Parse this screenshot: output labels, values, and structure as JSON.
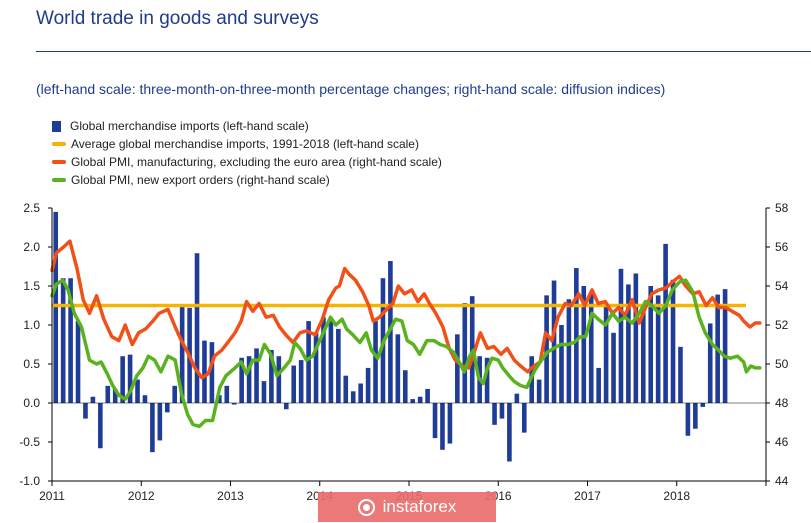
{
  "header": {
    "title": "World trade in goods and surveys",
    "subtitle": "(left-hand scale: three-month-on-three-month percentage changes; right-hand scale: diffusion indices)"
  },
  "watermark": {
    "text": "instaforex",
    "color": "#e96e6c"
  },
  "chart_data": {
    "type": "bar",
    "colors": {
      "imports": "#1f3c96",
      "average": "#f5b400",
      "pmi_manufacturing": "#f25019",
      "pmi_export": "#5ab21e",
      "axis": "#000000"
    },
    "x_tick_labels": [
      "2011",
      "2012",
      "2013",
      "2014",
      "2015",
      "2016",
      "2017",
      "2018"
    ],
    "x_range_years": [
      2011,
      2019
    ],
    "left_axis": {
      "ylim": [
        -1.0,
        2.5
      ],
      "ticks": [
        "2.5",
        "2.0",
        "1.5",
        "1.0",
        "0.5",
        "0.0",
        "-0.5",
        "-1.0"
      ]
    },
    "right_axis": {
      "ylim": [
        44,
        58
      ],
      "ticks": [
        "58",
        "56",
        "54",
        "52",
        "50",
        "48",
        "46",
        "44"
      ]
    },
    "series": [
      {
        "name": "Global merchandise imports (left-hand scale)",
        "kind": "bar",
        "axis": "left",
        "start": "2011-01",
        "values": [
          2.45,
          1.6,
          1.6,
          1.05,
          -0.2,
          0.08,
          -0.58,
          0.22,
          0.18,
          0.6,
          0.62,
          0.3,
          0.1,
          -0.63,
          -0.48,
          -0.12,
          0.22,
          1.25,
          1.22,
          1.92,
          0.8,
          0.78,
          0.1,
          0.22,
          -0.02,
          0.58,
          0.6,
          0.7,
          0.28,
          0.68,
          0.6,
          -0.08,
          0.48,
          0.55,
          1.05,
          0.9,
          1.1,
          1.05,
          0.95,
          0.35,
          0.15,
          0.25,
          0.45,
          1.05,
          1.6,
          1.82,
          0.88,
          0.42,
          0.05,
          0.08,
          0.18,
          -0.45,
          -0.6,
          -0.52,
          0.88,
          1.28,
          1.37,
          0.6,
          0.58,
          -0.28,
          -0.2,
          -0.75,
          0.12,
          -0.38,
          0.6,
          0.3,
          1.38,
          1.57,
          1.0,
          1.33,
          1.73,
          1.5,
          1.4,
          0.45,
          1.27,
          0.9,
          1.72,
          1.52,
          1.66,
          1.2,
          1.5,
          1.38,
          2.04,
          1.58,
          0.72,
          -0.42,
          -0.33,
          -0.05,
          1.02,
          1.39,
          1.46
        ],
        "color": "#1f3c96"
      },
      {
        "name": "Average global merchandise imports, 1991-2018 (left-hand scale)",
        "kind": "line",
        "axis": "left",
        "value": 1.25,
        "color": "#f5b400"
      },
      {
        "name": "Global PMI, manufacturing, excluding the euro area (right-hand scale)",
        "kind": "line",
        "axis": "right",
        "points": [
          [
            2011.0,
            54.8
          ],
          [
            2011.05,
            55.7
          ],
          [
            2011.13,
            56.0
          ],
          [
            2011.2,
            56.3
          ],
          [
            2011.28,
            54.9
          ],
          [
            2011.35,
            53.3
          ],
          [
            2011.42,
            52.6
          ],
          [
            2011.5,
            53.5
          ],
          [
            2011.58,
            52.3
          ],
          [
            2011.67,
            51.4
          ],
          [
            2011.75,
            51.2
          ],
          [
            2011.82,
            52.0
          ],
          [
            2011.9,
            51.0
          ],
          [
            2011.97,
            51.6
          ],
          [
            2012.05,
            51.8
          ],
          [
            2012.13,
            52.2
          ],
          [
            2012.2,
            52.6
          ],
          [
            2012.3,
            52.8
          ],
          [
            2012.38,
            51.9
          ],
          [
            2012.45,
            51.2
          ],
          [
            2012.52,
            50.6
          ],
          [
            2012.6,
            49.8
          ],
          [
            2012.68,
            49.3
          ],
          [
            2012.75,
            49.5
          ],
          [
            2012.82,
            50.4
          ],
          [
            2012.9,
            50.7
          ],
          [
            2012.97,
            51.1
          ],
          [
            2013.05,
            51.6
          ],
          [
            2013.12,
            52.2
          ],
          [
            2013.18,
            53.2
          ],
          [
            2013.25,
            52.7
          ],
          [
            2013.32,
            53.1
          ],
          [
            2013.4,
            52.4
          ],
          [
            2013.48,
            52.5
          ],
          [
            2013.55,
            51.9
          ],
          [
            2013.62,
            51.5
          ],
          [
            2013.7,
            51.1
          ],
          [
            2013.78,
            51.6
          ],
          [
            2013.85,
            51.7
          ],
          [
            2013.95,
            51.5
          ],
          [
            2014.03,
            52.3
          ],
          [
            2014.1,
            53.3
          ],
          [
            2014.18,
            53.9
          ],
          [
            2014.22,
            54.0
          ],
          [
            2014.28,
            54.9
          ],
          [
            2014.33,
            54.6
          ],
          [
            2014.4,
            54.3
          ],
          [
            2014.48,
            53.7
          ],
          [
            2014.55,
            53.0
          ],
          [
            2014.6,
            52.2
          ],
          [
            2014.67,
            52.4
          ],
          [
            2014.75,
            52.8
          ],
          [
            2014.82,
            53.1
          ],
          [
            2014.88,
            54.0
          ],
          [
            2014.95,
            53.6
          ],
          [
            2015.03,
            53.8
          ],
          [
            2015.1,
            53.2
          ],
          [
            2015.17,
            53.6
          ],
          [
            2015.23,
            53.1
          ],
          [
            2015.3,
            52.6
          ],
          [
            2015.38,
            51.9
          ],
          [
            2015.45,
            50.8
          ],
          [
            2015.52,
            50.2
          ],
          [
            2015.6,
            49.9
          ],
          [
            2015.67,
            49.8
          ],
          [
            2015.73,
            50.6
          ],
          [
            2015.8,
            51.6
          ],
          [
            2015.88,
            50.8
          ],
          [
            2015.95,
            50.9
          ],
          [
            2016.03,
            50.5
          ],
          [
            2016.1,
            50.8
          ],
          [
            2016.18,
            50.2
          ],
          [
            2016.25,
            49.9
          ],
          [
            2016.33,
            49.6
          ],
          [
            2016.4,
            49.9
          ],
          [
            2016.47,
            50.1
          ],
          [
            2016.53,
            51.6
          ],
          [
            2016.6,
            51.2
          ],
          [
            2016.67,
            52.4
          ],
          [
            2016.75,
            53.1
          ],
          [
            2016.82,
            53.0
          ],
          [
            2016.9,
            53.6
          ],
          [
            2016.97,
            53.0
          ],
          [
            2017.05,
            53.8
          ],
          [
            2017.12,
            53.1
          ],
          [
            2017.2,
            53.2
          ],
          [
            2017.28,
            52.6
          ],
          [
            2017.35,
            52.9
          ],
          [
            2017.42,
            52.5
          ],
          [
            2017.5,
            53.3
          ],
          [
            2017.58,
            52.1
          ],
          [
            2017.65,
            52.9
          ],
          [
            2017.72,
            53.6
          ],
          [
            2017.8,
            53.8
          ],
          [
            2017.88,
            53.9
          ],
          [
            2017.95,
            54.2
          ],
          [
            2018.03,
            54.5
          ],
          [
            2018.1,
            54.0
          ],
          [
            2018.18,
            53.6
          ],
          [
            2018.25,
            53.7
          ],
          [
            2018.33,
            53.0
          ],
          [
            2018.4,
            53.4
          ],
          [
            2018.47,
            52.9
          ],
          [
            2018.55,
            52.9
          ],
          [
            2018.62,
            52.7
          ],
          [
            2018.7,
            52.5
          ],
          [
            2018.75,
            52.2
          ],
          [
            2018.82,
            51.9
          ],
          [
            2018.88,
            52.1
          ],
          [
            2018.93,
            52.1
          ]
        ],
        "color": "#f25019"
      },
      {
        "name": "Global PMI, new export orders (right-hand scale)",
        "kind": "line",
        "axis": "right",
        "points": [
          [
            2011.0,
            53.5
          ],
          [
            2011.05,
            54.1
          ],
          [
            2011.12,
            54.3
          ],
          [
            2011.18,
            53.8
          ],
          [
            2011.25,
            52.6
          ],
          [
            2011.33,
            51.9
          ],
          [
            2011.42,
            50.2
          ],
          [
            2011.5,
            50.0
          ],
          [
            2011.55,
            50.1
          ],
          [
            2011.62,
            49.5
          ],
          [
            2011.68,
            48.9
          ],
          [
            2011.75,
            48.4
          ],
          [
            2011.82,
            48.2
          ],
          [
            2011.88,
            48.6
          ],
          [
            2011.95,
            49.4
          ],
          [
            2012.02,
            49.8
          ],
          [
            2012.08,
            50.4
          ],
          [
            2012.15,
            50.2
          ],
          [
            2012.22,
            49.6
          ],
          [
            2012.3,
            50.4
          ],
          [
            2012.38,
            50.2
          ],
          [
            2012.45,
            48.5
          ],
          [
            2012.52,
            47.4
          ],
          [
            2012.58,
            46.9
          ],
          [
            2012.65,
            46.8
          ],
          [
            2012.72,
            47.1
          ],
          [
            2012.8,
            47.1
          ],
          [
            2012.88,
            48.8
          ],
          [
            2012.95,
            49.4
          ],
          [
            2013.05,
            49.8
          ],
          [
            2013.12,
            50.1
          ],
          [
            2013.18,
            49.5
          ],
          [
            2013.25,
            50.2
          ],
          [
            2013.32,
            50.2
          ],
          [
            2013.38,
            51.0
          ],
          [
            2013.45,
            50.5
          ],
          [
            2013.52,
            49.4
          ],
          [
            2013.6,
            49.8
          ],
          [
            2013.67,
            50.2
          ],
          [
            2013.72,
            51.1
          ],
          [
            2013.78,
            50.8
          ],
          [
            2013.85,
            50.2
          ],
          [
            2013.92,
            50.4
          ],
          [
            2013.98,
            51.0
          ],
          [
            2014.05,
            51.7
          ],
          [
            2014.12,
            52.4
          ],
          [
            2014.18,
            52.0
          ],
          [
            2014.25,
            52.3
          ],
          [
            2014.3,
            51.8
          ],
          [
            2014.37,
            51.5
          ],
          [
            2014.45,
            51.1
          ],
          [
            2014.52,
            51.6
          ],
          [
            2014.58,
            50.7
          ],
          [
            2014.65,
            50.3
          ],
          [
            2014.72,
            51.2
          ],
          [
            2014.78,
            51.7
          ],
          [
            2014.85,
            52.3
          ],
          [
            2014.92,
            52.2
          ],
          [
            2014.98,
            51.2
          ],
          [
            2015.05,
            51.0
          ],
          [
            2015.12,
            50.5
          ],
          [
            2015.2,
            51.2
          ],
          [
            2015.28,
            51.2
          ],
          [
            2015.35,
            51.0
          ],
          [
            2015.42,
            50.9
          ],
          [
            2015.5,
            50.6
          ],
          [
            2015.55,
            50.2
          ],
          [
            2015.62,
            49.6
          ],
          [
            2015.68,
            50.4
          ],
          [
            2015.72,
            50.7
          ],
          [
            2015.78,
            49.3
          ],
          [
            2015.83,
            49.0
          ],
          [
            2015.88,
            49.8
          ],
          [
            2015.93,
            50.3
          ],
          [
            2016.0,
            50.2
          ],
          [
            2016.05,
            49.8
          ],
          [
            2016.12,
            49.4
          ],
          [
            2016.18,
            49.1
          ],
          [
            2016.25,
            48.9
          ],
          [
            2016.32,
            48.8
          ],
          [
            2016.4,
            49.6
          ],
          [
            2016.47,
            50.1
          ],
          [
            2016.55,
            50.6
          ],
          [
            2016.62,
            50.8
          ],
          [
            2016.7,
            51.0
          ],
          [
            2016.78,
            51.0
          ],
          [
            2016.85,
            51.1
          ],
          [
            2016.92,
            51.4
          ],
          [
            2016.98,
            51.4
          ],
          [
            2017.05,
            52.6
          ],
          [
            2017.12,
            52.3
          ],
          [
            2017.2,
            52.0
          ],
          [
            2017.28,
            52.6
          ],
          [
            2017.35,
            52.2
          ],
          [
            2017.42,
            52.4
          ],
          [
            2017.5,
            52.1
          ],
          [
            2017.58,
            52.6
          ],
          [
            2017.65,
            53.2
          ],
          [
            2017.72,
            53.0
          ],
          [
            2017.8,
            52.6
          ],
          [
            2017.88,
            53.0
          ],
          [
            2017.95,
            53.8
          ],
          [
            2018.03,
            54.2
          ],
          [
            2018.1,
            54.3
          ],
          [
            2018.18,
            53.7
          ],
          [
            2018.25,
            52.4
          ],
          [
            2018.32,
            51.6
          ],
          [
            2018.4,
            51.0
          ],
          [
            2018.47,
            50.7
          ],
          [
            2018.53,
            50.4
          ],
          [
            2018.6,
            50.3
          ],
          [
            2018.68,
            50.4
          ],
          [
            2018.75,
            50.1
          ],
          [
            2018.78,
            49.6
          ],
          [
            2018.83,
            49.9
          ],
          [
            2018.88,
            49.8
          ],
          [
            2018.93,
            49.8
          ]
        ],
        "color": "#5ab21e"
      }
    ]
  }
}
